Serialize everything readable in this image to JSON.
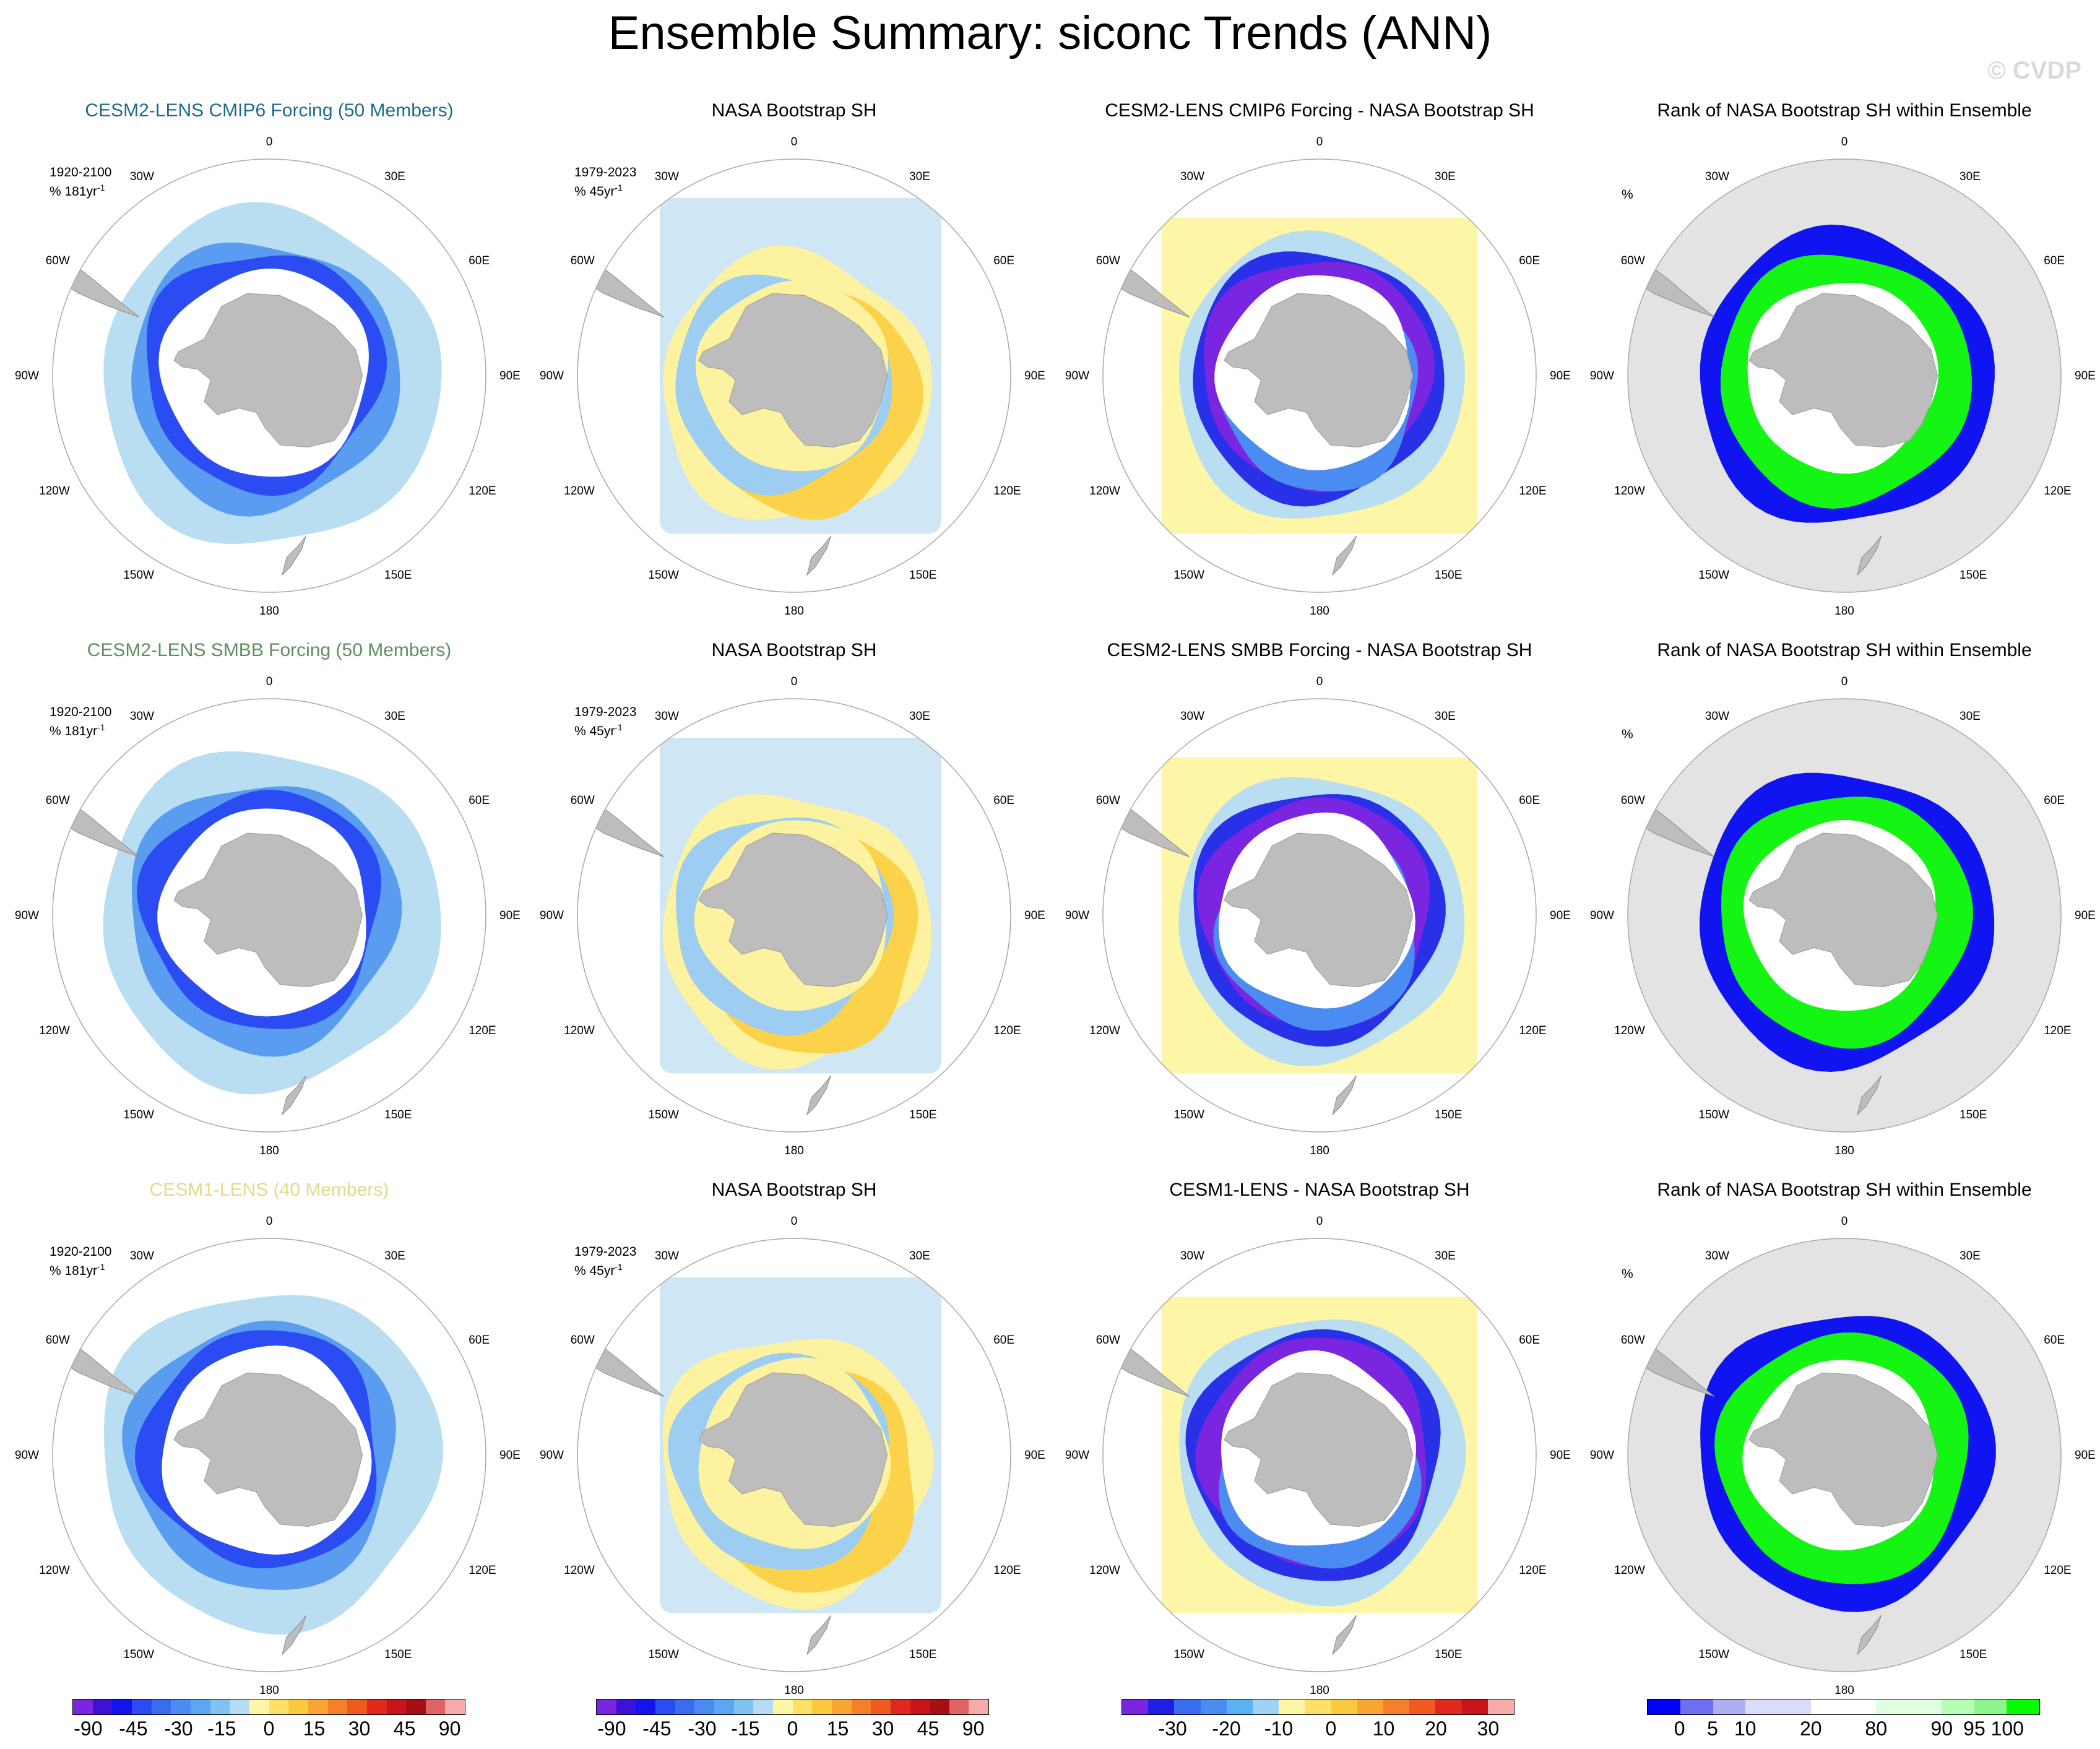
{
  "header": {
    "title": "Ensemble Summary: siconc Trends (ANN)",
    "watermark": "© CVDP"
  },
  "map_labels": [
    "0",
    "30E",
    "60E",
    "90E",
    "120E",
    "150E",
    "180",
    "150W",
    "120W",
    "90W",
    "60W",
    "30W"
  ],
  "rows": [
    {
      "model": {
        "title": "CESM2-LENS CMIP6 Forcing (50 Members)",
        "title_color": "#1d6b8a",
        "period": "1920-2100",
        "units": "% 181yr",
        "units_sup": "-1"
      },
      "obs": {
        "title": "NASA Bootstrap SH",
        "period": "1979-2023",
        "units": "% 45yr",
        "units_sup": "-1"
      },
      "diff": {
        "title": "CESM2-LENS CMIP6 Forcing - NASA Bootstrap SH"
      },
      "rank": {
        "title": "Rank of NASA Bootstrap SH within Ensemble",
        "units": "%"
      }
    },
    {
      "model": {
        "title": "CESM2-LENS SMBB Forcing (50 Members)",
        "title_color": "#5f8f5f",
        "period": "1920-2100",
        "units": "% 181yr",
        "units_sup": "-1"
      },
      "obs": {
        "title": "NASA Bootstrap SH",
        "period": "1979-2023",
        "units": "% 45yr",
        "units_sup": "-1"
      },
      "diff": {
        "title": "CESM2-LENS SMBB Forcing - NASA Bootstrap SH"
      },
      "rank": {
        "title": "Rank of NASA Bootstrap SH within Ensemble",
        "units": "%"
      }
    },
    {
      "model": {
        "title": "CESM1-LENS (40 Members)",
        "title_color": "#e3d98a",
        "period": "1920-2100",
        "units": "% 181yr",
        "units_sup": "-1"
      },
      "obs": {
        "title": "NASA Bootstrap SH",
        "period": "1979-2023",
        "units": "% 45yr",
        "units_sup": "-1"
      },
      "diff": {
        "title": "CESM1-LENS - NASA Bootstrap SH"
      },
      "rank": {
        "title": "Rank of NASA Bootstrap SH within Ensemble",
        "units": "%"
      }
    }
  ],
  "colorbars": {
    "trend": {
      "colors": [
        "#7a25e0",
        "#3d11d6",
        "#1414f0",
        "#2a4cf2",
        "#3a6cf0",
        "#4a8cf2",
        "#5aa7f2",
        "#82c2f0",
        "#b5dcf2",
        "#fdf7a5",
        "#fde066",
        "#fcc93c",
        "#f9a531",
        "#f4802a",
        "#ee5a20",
        "#e2281c",
        "#c8141a",
        "#a80f14",
        "#e06464",
        "#f6abab"
      ],
      "labels": [
        "-90",
        "-45",
        "-30",
        "-15",
        "0",
        "15",
        "30",
        "45",
        "90"
      ]
    },
    "diff": {
      "colors": [
        "#7a25e0",
        "#1f1fe6",
        "#3a6cf0",
        "#4a8cf2",
        "#5ab2f2",
        "#9fd2f2",
        "#fdf7a5",
        "#fde066",
        "#fcc93c",
        "#f9a531",
        "#f4802a",
        "#ee5a20",
        "#e2281c",
        "#c8141a",
        "#f6abab"
      ],
      "labels": [
        "-30",
        "-20",
        "-10",
        "0",
        "10",
        "20",
        "30"
      ]
    },
    "rank": {
      "colors": [
        "#0000ff",
        "#6f6ff4",
        "#aeaef0",
        "#dcdcf8",
        "#dcdcf8",
        "#ffffff",
        "#ffffff",
        "#dfffdf",
        "#dfffdf",
        "#b6ffb6",
        "#8cf58c",
        "#00ff00"
      ],
      "labels": [
        "0",
        "5",
        "10",
        "20",
        "80",
        "90",
        "95",
        "100"
      ]
    }
  }
}
